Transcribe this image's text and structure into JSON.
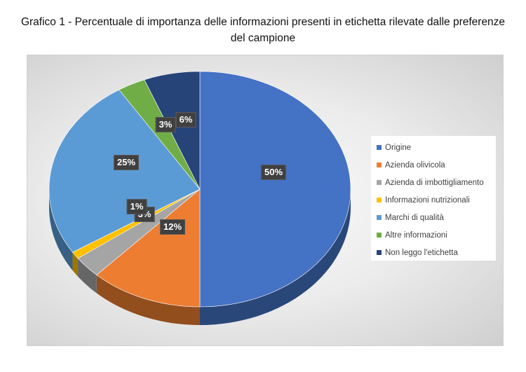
{
  "title": "Grafico 1 - Percentuale di importanza delle informazioni presenti in etichetta rilevate dalle preferenze del campione",
  "chart_data": {
    "type": "pie",
    "title": "Grafico 1 - Percentuale di importanza delle informazioni presenti in etichetta rilevate dalle preferenze del campione",
    "legend_position": "right",
    "style": "3d",
    "slices": [
      {
        "label": "Origine",
        "value": 50,
        "display": "50%",
        "color": "#4472C4"
      },
      {
        "label": "Azienda olivicola",
        "value": 12,
        "display": "12%",
        "color": "#ED7D31"
      },
      {
        "label": "Azienda di imbottigliamento",
        "value": 3,
        "display": "3%",
        "color": "#A5A5A5"
      },
      {
        "label": "Informazioni nutrizionali",
        "value": 1,
        "display": "1%",
        "color": "#FFC000"
      },
      {
        "label": "Marchi di qualità",
        "value": 25,
        "display": "25%",
        "color": "#5B9BD5"
      },
      {
        "label": "Altre informazioni",
        "value": 3,
        "display": "3%",
        "color": "#70AD47"
      },
      {
        "label": "Non leggo l'etichetta",
        "value": 6,
        "display": "6%",
        "color": "#264478"
      }
    ]
  }
}
